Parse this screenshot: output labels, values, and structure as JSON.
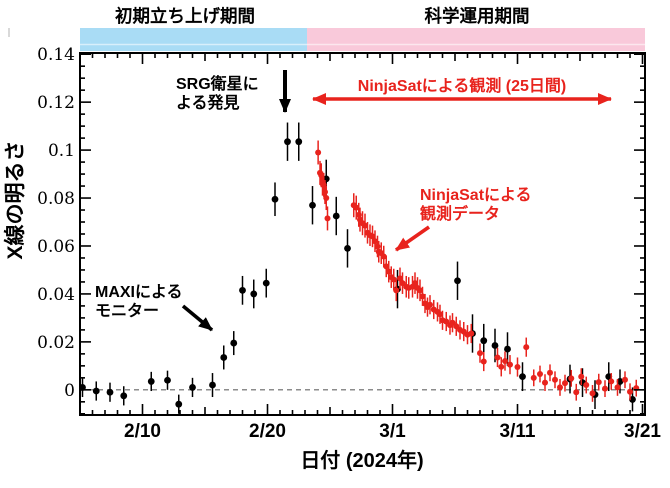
{
  "phases": {
    "startup": {
      "label": "初期立ち上げ期間",
      "color": "#a9dcf5"
    },
    "science": {
      "label": "科学運用期間",
      "color": "#f9c9da"
    }
  },
  "annotations": {
    "srg": {
      "line1": "SRG衛星に",
      "line2": "よる発見"
    },
    "ninjasat_span": {
      "label": "NinjaSatによる観測 (25日間)"
    },
    "ninjasat_data": {
      "line1": "NinjaSatによる",
      "line2": "観測データ"
    },
    "maxi": {
      "line1": "MAXIによる",
      "line2": "モニター"
    }
  },
  "colors": {
    "ninjasat_red": "#e8231d",
    "maxi_black": "#000000",
    "zero_line": "#666666",
    "frame": "#000000"
  },
  "chart_data": {
    "type": "scatter",
    "title": "",
    "xlabel": "日付 (2024年)",
    "ylabel": "X線の明るさ",
    "x_epoch": "day 0 = 2024-02-05",
    "x_range_days": [
      0,
      45.2
    ],
    "ylim": [
      -0.0105,
      0.1405
    ],
    "x_ticks": [
      {
        "day": 5,
        "label": "2/10"
      },
      {
        "day": 15,
        "label": "2/20"
      },
      {
        "day": 25,
        "label": "3/1"
      },
      {
        "day": 35,
        "label": "3/11"
      },
      {
        "day": 45,
        "label": "3/21"
      }
    ],
    "y_ticks": [
      {
        "value": 0,
        "label": "0"
      },
      {
        "value": 0.02,
        "label": "0.02"
      },
      {
        "value": 0.04,
        "label": "0.04"
      },
      {
        "value": 0.06,
        "label": "0.06"
      },
      {
        "value": 0.08,
        "label": "0.08"
      },
      {
        "value": 0.1,
        "label": "0.1"
      },
      {
        "value": 0.12,
        "label": "0.12"
      },
      {
        "value": 0.14,
        "label": "0.14"
      }
    ],
    "minor_tick_x_days": 1,
    "minor_tick_y": 0.005,
    "zero_line": {
      "value": 0,
      "style": "dashed"
    },
    "grid": false,
    "legend": "none",
    "series": [
      {
        "name": "MAXI",
        "color": "#000000",
        "marker_r": 3.4,
        "points": [
          [
            0.2,
            0.001,
            0.004
          ],
          [
            1.3,
            -0.0005,
            0.004
          ],
          [
            2.4,
            -0.001,
            0.004
          ],
          [
            3.5,
            -0.0025,
            0.004
          ],
          [
            5.7,
            0.0035,
            0.004
          ],
          [
            7.0,
            0.004,
            0.004
          ],
          [
            7.9,
            -0.006,
            0.004
          ],
          [
            9.0,
            0.001,
            0.004
          ],
          [
            10.6,
            0.002,
            0.005
          ],
          [
            11.5,
            0.0135,
            0.005
          ],
          [
            12.3,
            0.0195,
            0.005
          ],
          [
            13.0,
            0.0415,
            0.006
          ],
          [
            13.9,
            0.04,
            0.006
          ],
          [
            14.9,
            0.0445,
            0.006
          ],
          [
            15.6,
            0.0795,
            0.007
          ],
          [
            16.6,
            0.1035,
            0.008
          ],
          [
            17.5,
            0.1035,
            0.008
          ],
          [
            18.6,
            0.077,
            0.008
          ],
          [
            19.7,
            0.088,
            0.008
          ],
          [
            20.5,
            0.0725,
            0.008
          ],
          [
            21.4,
            0.059,
            0.008
          ],
          [
            25.4,
            0.042,
            0.008
          ],
          [
            30.2,
            0.0455,
            0.008
          ],
          [
            31.4,
            0.0235,
            0.008
          ],
          [
            32.3,
            0.0205,
            0.007
          ],
          [
            33.2,
            0.0185,
            0.007
          ],
          [
            34.2,
            0.017,
            0.007
          ],
          [
            35.4,
            0.0055,
            0.006
          ],
          [
            39.2,
            0.0045,
            0.006
          ],
          [
            40.2,
            0.003,
            0.006
          ],
          [
            41.2,
            -0.002,
            0.006
          ],
          [
            42.3,
            0.0055,
            0.006
          ],
          [
            43.2,
            0.0035,
            0.005
          ],
          [
            44.2,
            -0.004,
            0.005
          ]
        ]
      },
      {
        "name": "NinjaSat",
        "color": "#e8231d",
        "marker_r": 3.0,
        "points": [
          [
            19.05,
            0.099,
            0.005
          ],
          [
            19.2,
            0.0905,
            0.005
          ],
          [
            19.3,
            0.0895,
            0.005
          ],
          [
            19.4,
            0.086,
            0.005
          ],
          [
            19.5,
            0.0855,
            0.005
          ],
          [
            19.6,
            0.0825,
            0.005
          ],
          [
            19.7,
            0.08,
            0.005
          ],
          [
            19.8,
            0.0715,
            0.005
          ],
          [
            21.9,
            0.077,
            0.005
          ],
          [
            22.1,
            0.076,
            0.005
          ],
          [
            22.3,
            0.073,
            0.005
          ],
          [
            22.4,
            0.071,
            0.005
          ],
          [
            22.6,
            0.0695,
            0.005
          ],
          [
            22.8,
            0.0685,
            0.005
          ],
          [
            23.0,
            0.0655,
            0.0045
          ],
          [
            23.2,
            0.0645,
            0.0045
          ],
          [
            23.4,
            0.064,
            0.0045
          ],
          [
            23.6,
            0.062,
            0.0045
          ],
          [
            23.8,
            0.0598,
            0.0045
          ],
          [
            23.9,
            0.0576,
            0.0045
          ],
          [
            24.1,
            0.057,
            0.0045
          ],
          [
            24.3,
            0.0556,
            0.0045
          ],
          [
            24.5,
            0.0515,
            0.0045
          ],
          [
            24.7,
            0.0493,
            0.0045
          ],
          [
            24.9,
            0.047,
            0.0045
          ],
          [
            25.1,
            0.046,
            0.0045
          ],
          [
            25.3,
            0.0415,
            0.0045
          ],
          [
            25.6,
            0.0465,
            0.0045
          ],
          [
            25.8,
            0.0445,
            0.0045
          ],
          [
            26.1,
            0.043,
            0.0045
          ],
          [
            26.3,
            0.0425,
            0.0045
          ],
          [
            26.6,
            0.043,
            0.0045
          ],
          [
            26.8,
            0.0445,
            0.0045
          ],
          [
            27.0,
            0.0425,
            0.0045
          ],
          [
            27.2,
            0.0415,
            0.0045
          ],
          [
            27.4,
            0.039,
            0.004
          ],
          [
            27.6,
            0.036,
            0.004
          ],
          [
            27.8,
            0.0345,
            0.004
          ],
          [
            28.0,
            0.0355,
            0.004
          ],
          [
            28.3,
            0.0335,
            0.004
          ],
          [
            28.6,
            0.0325,
            0.004
          ],
          [
            28.8,
            0.0315,
            0.004
          ],
          [
            29.0,
            0.029,
            0.004
          ],
          [
            29.3,
            0.0285,
            0.004
          ],
          [
            29.6,
            0.027,
            0.004
          ],
          [
            29.8,
            0.028,
            0.004
          ],
          [
            30.1,
            0.0265,
            0.004
          ],
          [
            30.4,
            0.025,
            0.004
          ],
          [
            30.7,
            0.0243,
            0.004
          ],
          [
            31.0,
            0.023,
            0.004
          ],
          [
            31.3,
            0.0235,
            0.004
          ],
          [
            32.0,
            0.0153,
            0.004
          ],
          [
            32.3,
            0.0118,
            0.004
          ],
          [
            33.4,
            0.0135,
            0.004
          ],
          [
            33.7,
            0.0096,
            0.004
          ],
          [
            34.0,
            0.012,
            0.004
          ],
          [
            34.4,
            0.0105,
            0.004
          ],
          [
            35.0,
            0.0095,
            0.004
          ],
          [
            35.7,
            0.0178,
            0.004
          ],
          [
            36.3,
            0.005,
            0.0035
          ],
          [
            36.8,
            0.0066,
            0.0035
          ],
          [
            37.2,
            0.003,
            0.0035
          ],
          [
            37.6,
            0.0071,
            0.0035
          ],
          [
            38.0,
            0.0042,
            0.0035
          ],
          [
            38.4,
            0.001,
            0.0035
          ],
          [
            38.8,
            0.0028,
            0.0035
          ],
          [
            39.3,
            0.0048,
            0.0035
          ],
          [
            39.7,
            -0.001,
            0.0035
          ],
          [
            40.1,
            0.0055,
            0.0035
          ],
          [
            40.5,
            0.002,
            0.0035
          ],
          [
            41.0,
            -0.0015,
            0.0035
          ],
          [
            41.5,
            0.0032,
            0.0035
          ],
          [
            42.0,
            0.0005,
            0.0035
          ],
          [
            42.5,
            0.0035,
            0.0035
          ],
          [
            43.0,
            0.001,
            0.0035
          ],
          [
            43.6,
            0.0042,
            0.0035
          ],
          [
            44.0,
            -0.0008,
            0.0035
          ],
          [
            44.5,
            0.0007,
            0.0035
          ]
        ]
      }
    ]
  }
}
